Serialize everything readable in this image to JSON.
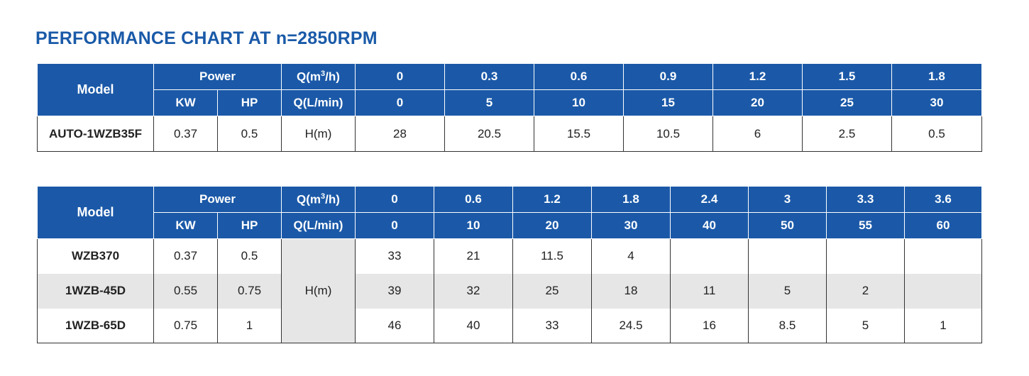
{
  "title": "PERFORMANCE CHART AT n=2850RPM",
  "table1": {
    "header": {
      "model": "Model",
      "power": "Power",
      "kw": "KW",
      "hp": "HP",
      "q_m3h_label_prefix": "Q(m",
      "q_m3h_label_sup": "3",
      "q_m3h_label_suffix": "/h)",
      "q_lmin_label": "Q(L/min)",
      "q_m3h": [
        "0",
        "0.3",
        "0.6",
        "0.9",
        "1.2",
        "1.5",
        "1.8"
      ],
      "q_lmin": [
        "0",
        "5",
        "10",
        "15",
        "20",
        "25",
        "30"
      ]
    },
    "rows": [
      {
        "model": "AUTO-1WZB35F",
        "kw": "0.37",
        "hp": "0.5",
        "unit": "H(m)",
        "h": [
          "28",
          "20.5",
          "15.5",
          "10.5",
          "6",
          "2.5",
          "0.5"
        ]
      }
    ]
  },
  "table2": {
    "header": {
      "model": "Model",
      "power": "Power",
      "kw": "KW",
      "hp": "HP",
      "q_m3h_label_prefix": "Q(m",
      "q_m3h_label_sup": "3",
      "q_m3h_label_suffix": "/h)",
      "q_lmin_label": "Q(L/min)",
      "q_m3h": [
        "0",
        "0.6",
        "1.2",
        "1.8",
        "2.4",
        "3",
        "3.3",
        "3.6"
      ],
      "q_lmin": [
        "0",
        "10",
        "20",
        "30",
        "40",
        "50",
        "55",
        "60"
      ]
    },
    "unit": "H(m)",
    "rows": [
      {
        "model": "WZB370",
        "kw": "0.37",
        "hp": "0.5",
        "h": [
          "33",
          "21",
          "11.5",
          "4",
          "",
          "",
          "",
          ""
        ]
      },
      {
        "model": "1WZB-45D",
        "kw": "0.55",
        "hp": "0.75",
        "h": [
          "39",
          "32",
          "25",
          "18",
          "11",
          "5",
          "2",
          ""
        ]
      },
      {
        "model": "1WZB-65D",
        "kw": "0.75",
        "hp": "1",
        "h": [
          "46",
          "40",
          "33",
          "24.5",
          "16",
          "8.5",
          "5",
          "1"
        ]
      }
    ]
  }
}
